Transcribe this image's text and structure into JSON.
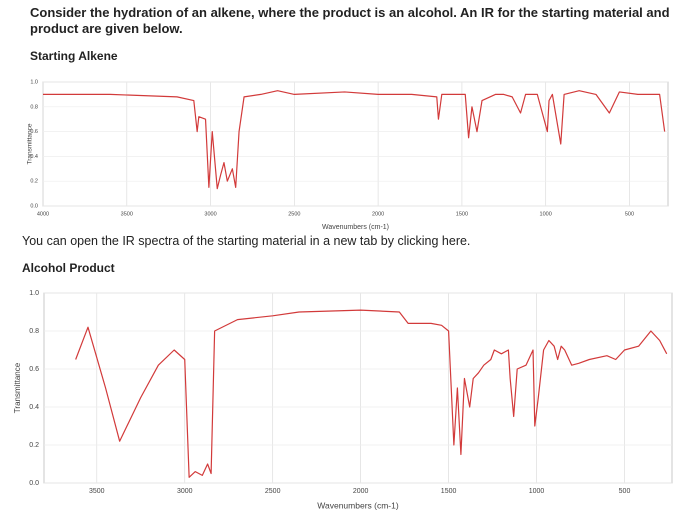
{
  "question": "Consider the hydration of an alkene, where the product is an alcohol. An IR for the starting material and product are given below.",
  "link_note": "You can open the IR spectra of the starting material in a new tab by clicking here.",
  "chart_data": [
    {
      "type": "line",
      "title": "Starting Alkene",
      "x_label": "Wavenumbers (cm-1)",
      "y_label": "Transmittance",
      "xlim": [
        4000,
        270
      ],
      "ylim": [
        0,
        1
      ],
      "xticks": [
        4000,
        3500,
        3000,
        2500,
        2000,
        1500,
        1000,
        500
      ],
      "yticks": [
        {
          "value": 0,
          "label": "0.0"
        },
        0.2,
        0.4,
        0.6,
        0.8,
        {
          "value": 1,
          "label": "1.0"
        }
      ],
      "grid": true,
      "series": [
        {
          "color": "#d23a3a",
          "x": [
            4000,
            3600,
            3200,
            3100,
            3080,
            3070,
            3030,
            3010,
            2990,
            2960,
            2940,
            2920,
            2900,
            2870,
            2850,
            2830,
            2800,
            2700,
            2600,
            2500,
            2200,
            2000,
            1800,
            1650,
            1640,
            1620,
            1480,
            1460,
            1440,
            1410,
            1380,
            1300,
            1250,
            1200,
            1150,
            1120,
            1050,
            990,
            980,
            960,
            910,
            890,
            800,
            700,
            620,
            560,
            450,
            320,
            290
          ],
          "values": [
            0.9,
            0.9,
            0.88,
            0.85,
            0.6,
            0.72,
            0.7,
            0.15,
            0.6,
            0.14,
            0.25,
            0.35,
            0.2,
            0.3,
            0.15,
            0.6,
            0.88,
            0.9,
            0.93,
            0.9,
            0.92,
            0.9,
            0.9,
            0.88,
            0.7,
            0.9,
            0.9,
            0.55,
            0.8,
            0.6,
            0.85,
            0.9,
            0.9,
            0.88,
            0.75,
            0.9,
            0.9,
            0.6,
            0.85,
            0.9,
            0.5,
            0.9,
            0.93,
            0.9,
            0.75,
            0.92,
            0.9,
            0.9,
            0.6
          ]
        }
      ]
    },
    {
      "type": "line",
      "title": "Alcohol Product",
      "x_label": "Wavenumbers (cm-1)",
      "y_label": "Transmittance",
      "xlim": [
        3800,
        230
      ],
      "ylim": [
        0,
        1
      ],
      "xticks": [
        3500,
        3000,
        2500,
        2000,
        1500,
        1000,
        500
      ],
      "yticks": [
        {
          "value": 0,
          "label": "0.0"
        },
        0.2,
        0.4,
        0.6,
        0.8,
        {
          "value": 1,
          "label": "1.0"
        }
      ],
      "grid": true,
      "series": [
        {
          "color": "#d23a3a",
          "x": [
            3620,
            3550,
            3450,
            3370,
            3250,
            3150,
            3060,
            3000,
            2975,
            2940,
            2900,
            2870,
            2850,
            2830,
            2700,
            2500,
            2350,
            2000,
            1780,
            1730,
            1600,
            1540,
            1500,
            1470,
            1450,
            1430,
            1410,
            1380,
            1360,
            1330,
            1300,
            1260,
            1240,
            1200,
            1160,
            1150,
            1130,
            1110,
            1060,
            1020,
            1010,
            990,
            960,
            930,
            900,
            880,
            860,
            840,
            800,
            760,
            700,
            600,
            550,
            500,
            420,
            350,
            300,
            260
          ],
          "values": [
            0.65,
            0.82,
            0.5,
            0.22,
            0.45,
            0.62,
            0.7,
            0.65,
            0.03,
            0.06,
            0.04,
            0.1,
            0.05,
            0.8,
            0.86,
            0.88,
            0.9,
            0.91,
            0.9,
            0.84,
            0.84,
            0.83,
            0.8,
            0.2,
            0.5,
            0.15,
            0.55,
            0.4,
            0.55,
            0.58,
            0.62,
            0.65,
            0.7,
            0.68,
            0.7,
            0.55,
            0.35,
            0.6,
            0.62,
            0.7,
            0.3,
            0.45,
            0.7,
            0.75,
            0.72,
            0.65,
            0.72,
            0.7,
            0.62,
            0.63,
            0.65,
            0.67,
            0.65,
            0.7,
            0.72,
            0.8,
            0.75,
            0.68
          ]
        }
      ]
    }
  ]
}
